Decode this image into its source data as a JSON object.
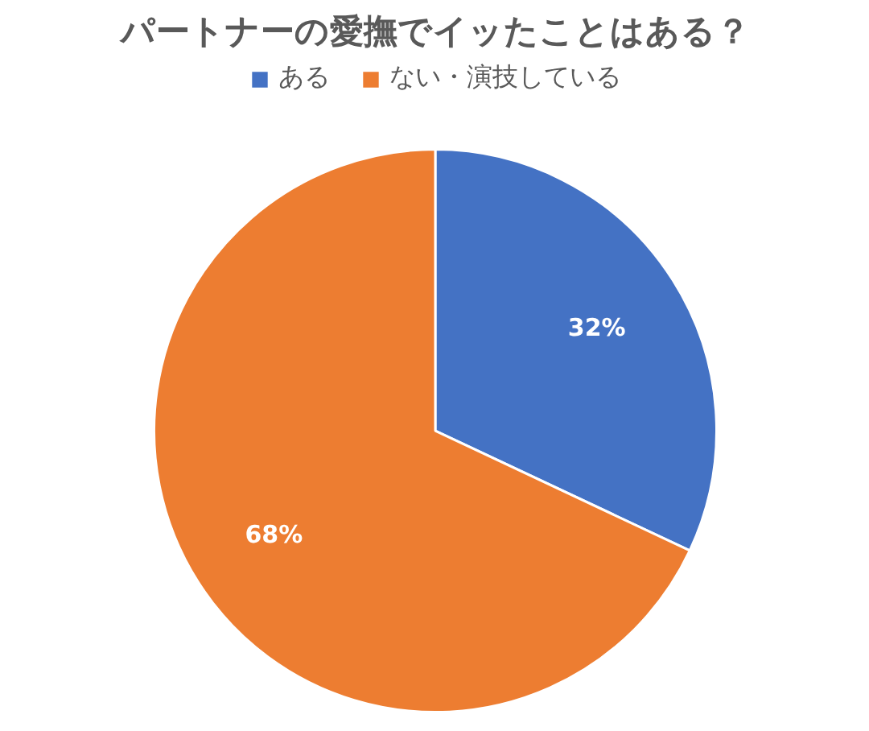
{
  "chart_data": {
    "type": "pie",
    "title": "パートナーの愛撫でイッたことはある？",
    "categories": [
      "ある",
      "ない・演技している"
    ],
    "values": [
      32,
      68
    ],
    "value_labels": [
      "32%",
      "68%"
    ],
    "colors": [
      "#4472c4",
      "#ed7d31"
    ],
    "legend": "top"
  }
}
